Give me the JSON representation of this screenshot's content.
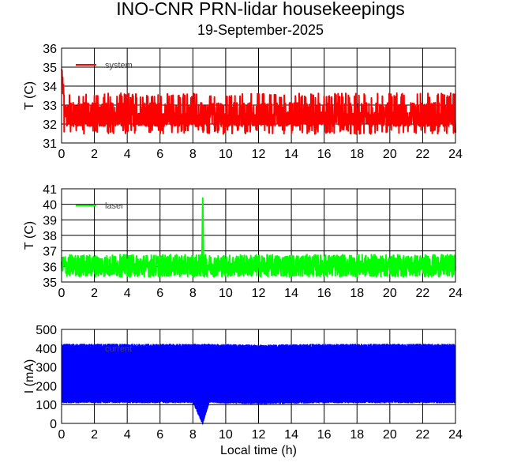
{
  "header": {
    "title": "INO-CNR PRN-lidar housekeepings",
    "subtitle": "19-September-2025"
  },
  "chart_data": [
    {
      "type": "line",
      "ylabel": "T (C)",
      "xlabel": "",
      "xlim": [
        0,
        24
      ],
      "ylim": [
        31,
        36
      ],
      "xticks": [
        "0",
        "2",
        "4",
        "6",
        "8",
        "10",
        "12",
        "14",
        "16",
        "18",
        "20",
        "22",
        "24"
      ],
      "yticks": [
        "31",
        "32",
        "33",
        "34",
        "35",
        "36"
      ],
      "grid": true,
      "legend_position": "top-left",
      "color": "#ff0000",
      "series": [
        {
          "name": "system",
          "description": "noisy trace alternating between ~31.5 and ~33.5 C, initial spike near 35.7 C at t=0",
          "x": [
            0,
            0.02,
            0.1,
            1,
            2,
            4,
            6,
            8,
            10,
            12,
            14,
            16,
            18,
            20,
            22,
            24
          ],
          "y": [
            32.5,
            35.7,
            33.5,
            32.5,
            32.6,
            32.6,
            32.5,
            32.6,
            32.5,
            32.6,
            32.7,
            32.6,
            32.5,
            32.6,
            32.5,
            32.6
          ],
          "band": [
            31.5,
            33.6
          ]
        }
      ]
    },
    {
      "type": "line",
      "ylabel": "T (C)",
      "xlabel": "",
      "xlim": [
        0,
        24
      ],
      "ylim": [
        35,
        41
      ],
      "xticks": [
        "0",
        "2",
        "4",
        "6",
        "8",
        "10",
        "12",
        "14",
        "16",
        "18",
        "20",
        "22",
        "24"
      ],
      "yticks": [
        "35",
        "36",
        "37",
        "38",
        "39",
        "40",
        "41"
      ],
      "grid": true,
      "legend_position": "top-left",
      "color": "#00ff00",
      "series": [
        {
          "name": "laser",
          "description": "noisy trace between ~35.3 and ~36.8 C, spike to ~40.4 C near t=8.6 h",
          "x": [
            0,
            2,
            4,
            6,
            8,
            8.6,
            9,
            12,
            16,
            20,
            24
          ],
          "y": [
            36.0,
            36.0,
            36.0,
            36.0,
            36.0,
            40.4,
            36.0,
            36.0,
            36.0,
            36.0,
            36.0
          ],
          "band": [
            35.3,
            36.8
          ]
        }
      ]
    },
    {
      "type": "area",
      "ylabel": "I (mA)",
      "xlabel": "Local time (h)",
      "xlim": [
        0,
        24
      ],
      "ylim": [
        0,
        500
      ],
      "xticks": [
        "0",
        "2",
        "4",
        "6",
        "8",
        "10",
        "12",
        "14",
        "16",
        "18",
        "20",
        "22",
        "24"
      ],
      "yticks": [
        "0",
        "100",
        "200",
        "300",
        "400",
        "500"
      ],
      "grid": true,
      "legend_position": "top-left",
      "color": "#0000ff",
      "series": [
        {
          "name": "current",
          "description": "dense band oscillating between ~115 and ~410 mA over the whole day, dip to 0 near t=8.6 h",
          "x": [
            0,
            4,
            8,
            8.6,
            9,
            12,
            16,
            20,
            24
          ],
          "y_low": [
            115,
            115,
            115,
            0,
            115,
            110,
            115,
            115,
            115
          ],
          "y_high": [
            410,
            410,
            410,
            410,
            410,
            405,
            410,
            410,
            410
          ]
        }
      ]
    }
  ]
}
